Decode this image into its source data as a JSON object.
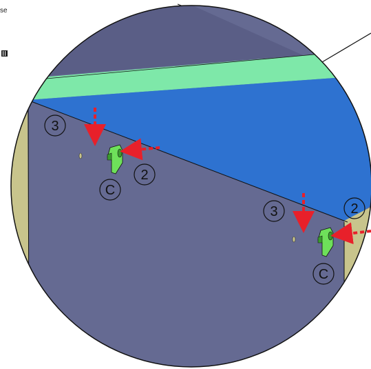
{
  "corner": {
    "top_text": "",
    "left_text": "se"
  },
  "labels": {
    "step_three": "3",
    "step_two": "2",
    "part_c": "C"
  },
  "colors": {
    "panel": "#656a92",
    "panel_dark": "#5a5e86",
    "green_strip": "#7ee8a9",
    "blue_surface": "#2e72d0",
    "side_beige": "#c8c48c",
    "clip_green": "#6ee05a",
    "clip_dark": "#3a9c2e",
    "arrow_red": "#e8202a",
    "outline": "#111111"
  },
  "icons": {
    "arrow": "dashed-red-arrow",
    "clip": "green-mounting-clip",
    "barcode": "barcode-icon"
  }
}
